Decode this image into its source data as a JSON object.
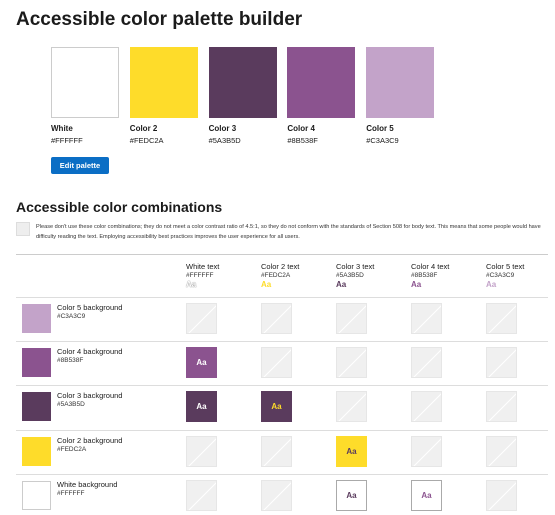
{
  "header": {
    "title": "Accessible color palette builder"
  },
  "palette": {
    "swatches": [
      {
        "name": "White",
        "hex": "#FFFFFF"
      },
      {
        "name": "Color 2",
        "hex": "#FEDC2A"
      },
      {
        "name": "Color 3",
        "hex": "#5A3B5D"
      },
      {
        "name": "Color 4",
        "hex": "#8B538F"
      },
      {
        "name": "Color 5",
        "hex": "#C3A3C9"
      }
    ],
    "button": "Edit palette"
  },
  "combinations": {
    "title": "Accessible color combinations",
    "note": "Please don't use these color combinations; they do not meet a color contrast ratio of 4.5:1, so they do not conform with the standards of Section 508 for body text. This means that some people would have difficulty reading the text. Employing accessibility best practices improves the user experience for all users.",
    "columns": [
      {
        "name": "White text",
        "hex": "#FFFFFF",
        "sample": "Aa"
      },
      {
        "name": "Color 2 text",
        "hex": "#FEDC2A",
        "sample": "Aa"
      },
      {
        "name": "Color 3 text",
        "hex": "#5A3B5D",
        "sample": "Aa"
      },
      {
        "name": "Color 4 text",
        "hex": "#8B538F",
        "sample": "Aa"
      },
      {
        "name": "Color 5 text",
        "hex": "#C3A3C9",
        "sample": "Aa"
      }
    ],
    "rows": [
      {
        "name": "Color 5 background",
        "hex": "#C3A3C9",
        "pass": [
          false,
          false,
          false,
          false,
          false
        ]
      },
      {
        "name": "Color 4 background",
        "hex": "#8B538F",
        "pass": [
          true,
          false,
          false,
          false,
          false
        ]
      },
      {
        "name": "Color 3 background",
        "hex": "#5A3B5D",
        "pass": [
          true,
          true,
          false,
          false,
          false
        ]
      },
      {
        "name": "Color 2 background",
        "hex": "#FEDC2A",
        "pass": [
          false,
          false,
          true,
          false,
          false
        ]
      },
      {
        "name": "White background",
        "hex": "#FFFFFF",
        "pass": [
          false,
          false,
          true,
          true,
          false
        ]
      }
    ]
  }
}
